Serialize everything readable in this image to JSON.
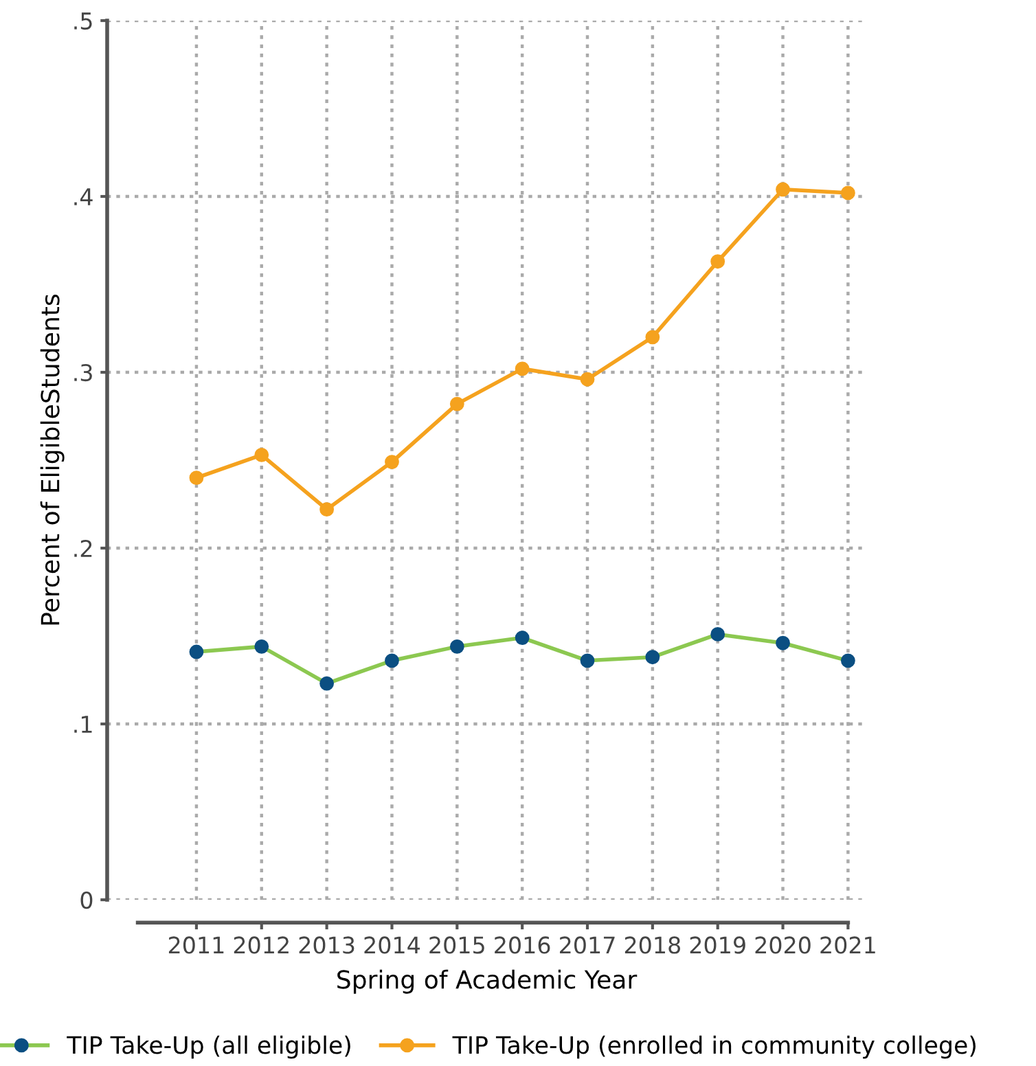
{
  "chart_data": {
    "type": "line",
    "xlabel": "Spring of Academic Year",
    "ylabel": "Percent of EligibleStudents",
    "categories": [
      "2011",
      "2012",
      "2013",
      "2014",
      "2015",
      "2016",
      "2017",
      "2018",
      "2019",
      "2020",
      "2021"
    ],
    "series": [
      {
        "name": "TIP Take-Up (all eligible)",
        "color": "#8cc850",
        "colors": [
          "#0b4f82",
          "#0b4f82",
          "#0b4f82",
          "#0b4f82",
          "#0b4f82",
          "#0b4f82",
          "#0b4f82",
          "#0b4f82",
          "#0b4f82",
          "#0b4f82",
          "#0b4f82"
        ],
        "values": [
          0.141,
          0.144,
          0.123,
          0.136,
          0.144,
          0.149,
          0.136,
          0.138,
          0.151,
          0.146,
          0.136
        ]
      },
      {
        "name": "TIP Take-Up (enrolled in community college)",
        "color": "#f5a21e",
        "values": [
          0.24,
          0.253,
          0.222,
          0.249,
          0.282,
          0.302,
          0.296,
          0.32,
          0.363,
          0.404,
          0.402
        ]
      }
    ],
    "ylim": [
      0,
      0.5
    ],
    "yticks": [
      {
        "value": 0,
        "label": "0"
      },
      {
        "value": 0.1,
        "label": ".1"
      },
      {
        "value": 0.2,
        "label": ".2"
      },
      {
        "value": 0.3,
        "label": ".3"
      },
      {
        "value": 0.4,
        "label": ".4"
      },
      {
        "value": 0.5,
        "label": ".5"
      }
    ],
    "grid": true,
    "legend": "bottom",
    "marker": "circle",
    "line_style": "solid"
  }
}
